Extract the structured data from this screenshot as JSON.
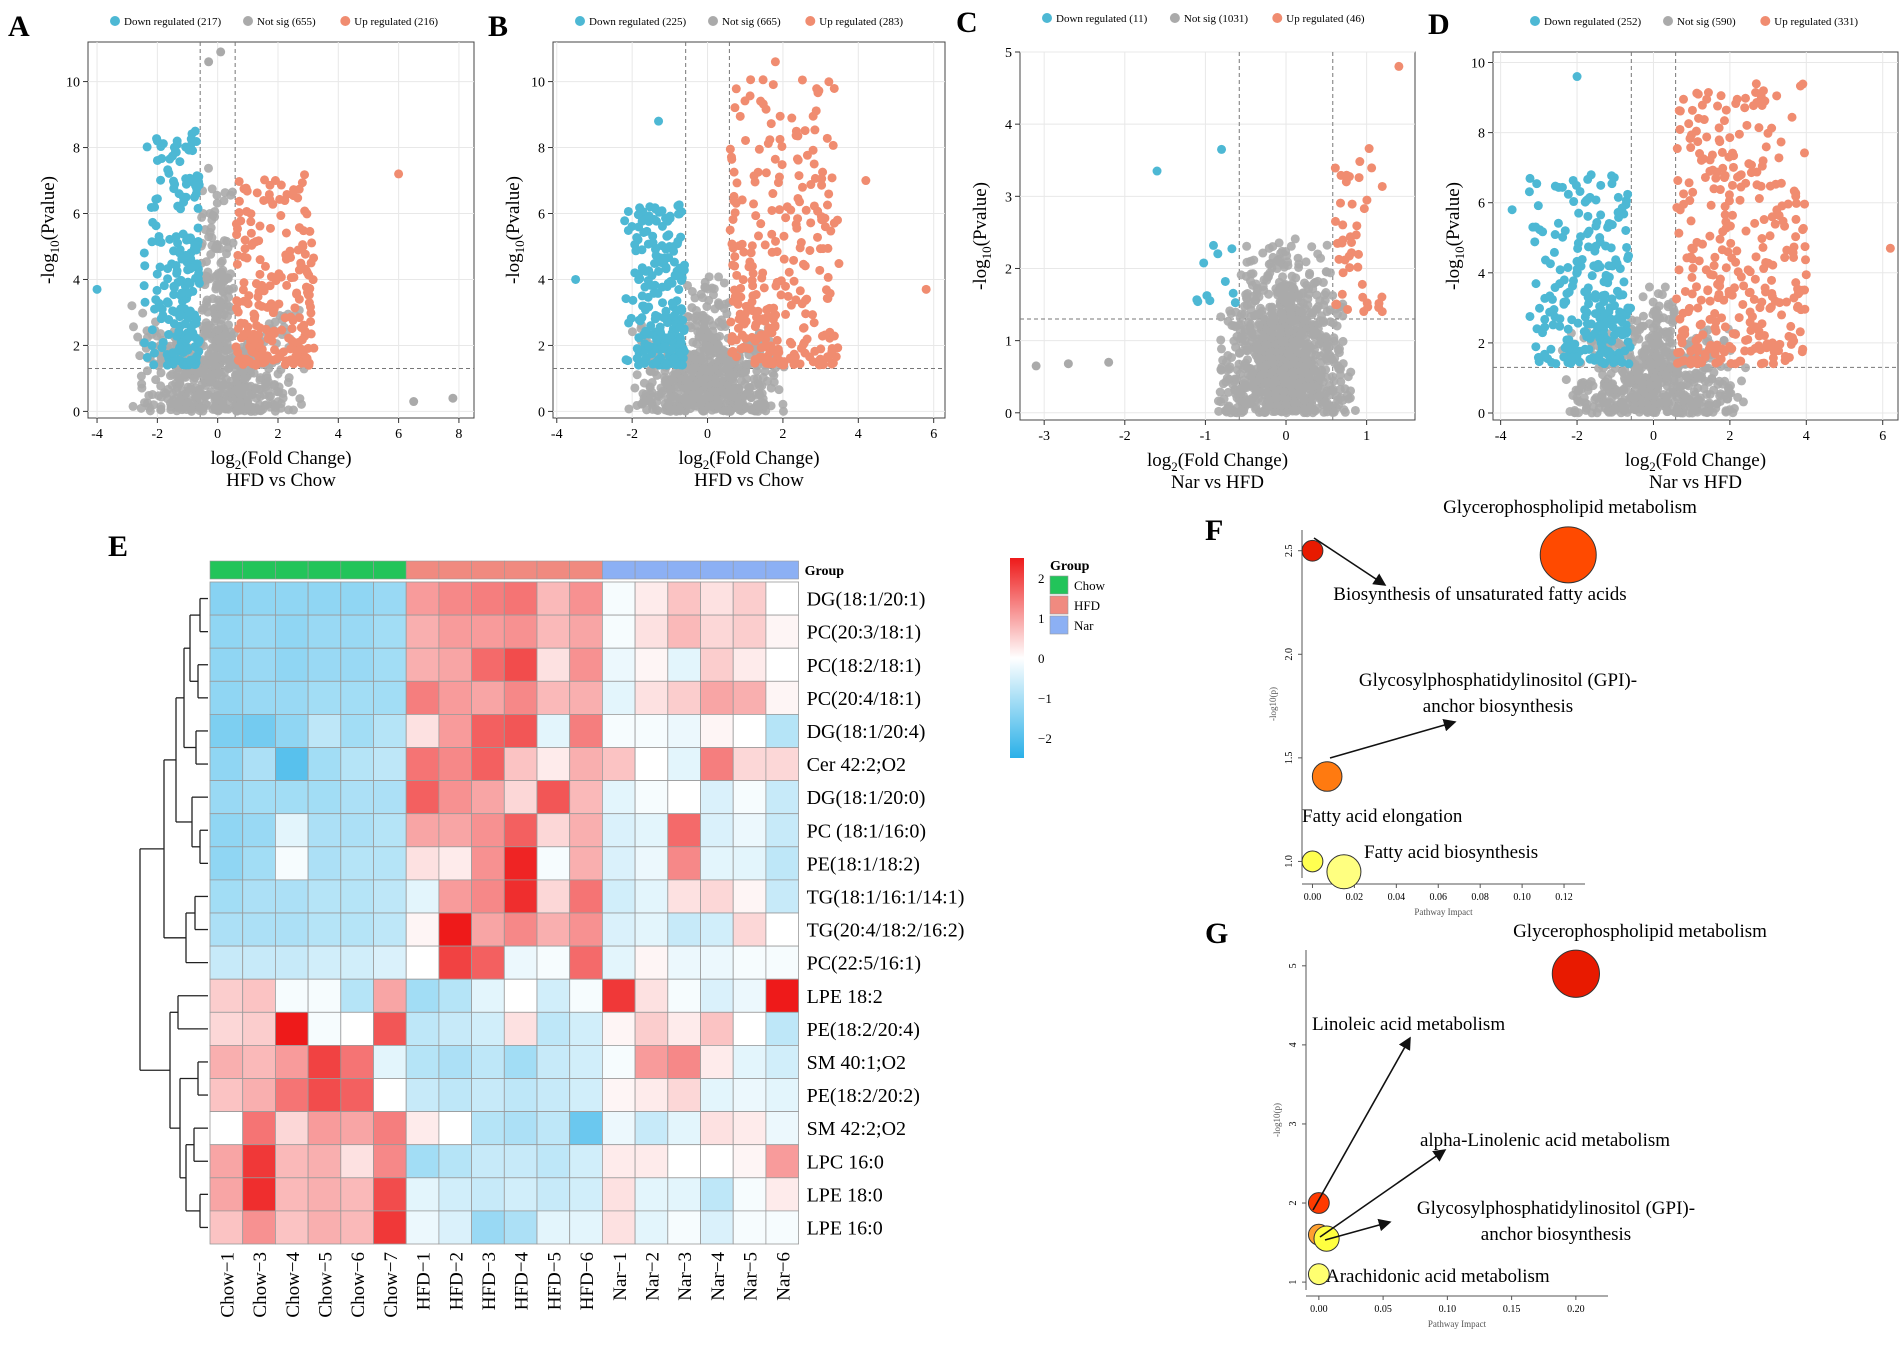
{
  "figure": {
    "panels": [
      "A",
      "B",
      "C",
      "D",
      "E",
      "F",
      "G"
    ]
  },
  "colors": {
    "down": "#4db8d4",
    "notsig": "#aaaaaa",
    "up": "#f08c70",
    "grid": "#e8e8e8",
    "heat_low": "#2ab0e8",
    "heat_mid": "#ffffff",
    "heat_high": "#ee1a1a",
    "chow": "#22c45a",
    "hfd": "#f08a80",
    "nar": "#8cb0f4"
  },
  "chart_data": [
    {
      "panel": "A",
      "type": "scatter",
      "subtype": "volcano",
      "xlabel_main": "log",
      "xlabel_sub": "2",
      "xlabel_rest": "(Fold Change)",
      "ylabel_main": "-log",
      "ylabel_sub": "10",
      "ylabel_rest": "(Pvalue)",
      "subtitle": "HFD vs Chow",
      "xlim": [
        -4.3,
        8.5
      ],
      "ylim": [
        -0.2,
        11.2
      ],
      "xticks": [
        -4,
        -2,
        0,
        2,
        4,
        6,
        8
      ],
      "yticks": [
        0,
        2,
        4,
        6,
        8,
        10
      ],
      "fc_threshold": 0.58,
      "p_line": 1.3,
      "legend": [
        {
          "key": "down",
          "label": "Down regulated (217)",
          "count": 217
        },
        {
          "key": "notsig",
          "label": "Not sig (655)",
          "count": 655
        },
        {
          "key": "up",
          "label": "Up regulated (216)",
          "count": 216
        }
      ],
      "cloud": {
        "down": [
          -2.5,
          -0.6,
          1.4,
          8.5
        ],
        "up": [
          0.6,
          3.2,
          1.4,
          7.2
        ],
        "ns_spread": 3.0,
        "ns_max": 8.0
      },
      "outliers": [
        [
          -4.0,
          3.7,
          "down"
        ],
        [
          6.0,
          7.2,
          "up"
        ],
        [
          -0.3,
          10.6,
          "notsig"
        ],
        [
          0.1,
          10.9,
          "notsig"
        ],
        [
          7.8,
          0.4,
          "notsig"
        ],
        [
          6.5,
          0.3,
          "notsig"
        ]
      ]
    },
    {
      "panel": "B",
      "type": "scatter",
      "subtype": "volcano",
      "xlabel_main": "log",
      "xlabel_sub": "2",
      "xlabel_rest": "(Fold Change)",
      "ylabel_main": "-log",
      "ylabel_sub": "10",
      "ylabel_rest": "(Pvalue)",
      "subtitle": "HFD vs Chow",
      "xlim": [
        -4.1,
        6.3
      ],
      "ylim": [
        -0.2,
        11.2
      ],
      "xticks": [
        -4,
        -2,
        0,
        2,
        4,
        6
      ],
      "yticks": [
        0,
        2,
        4,
        6,
        8,
        10
      ],
      "fc_threshold": 0.58,
      "p_line": 1.3,
      "legend": [
        {
          "key": "down",
          "label": "Down regulated (225)",
          "count": 225
        },
        {
          "key": "notsig",
          "label": "Not sig (665)",
          "count": 665
        },
        {
          "key": "up",
          "label": "Up regulated (283)",
          "count": 283
        }
      ],
      "cloud": {
        "down": [
          -2.3,
          -0.6,
          1.4,
          6.3
        ],
        "up": [
          0.6,
          3.5,
          1.4,
          10.2
        ],
        "ns_spread": 2.2,
        "ns_max": 4.5
      },
      "outliers": [
        [
          -3.5,
          4.0,
          "down"
        ],
        [
          -1.3,
          8.8,
          "down"
        ],
        [
          5.8,
          3.7,
          "up"
        ],
        [
          4.2,
          7.0,
          "up"
        ],
        [
          1.8,
          10.6,
          "up"
        ]
      ]
    },
    {
      "panel": "C",
      "type": "scatter",
      "subtype": "volcano",
      "xlabel_main": "log",
      "xlabel_sub": "2",
      "xlabel_rest": "(Fold Change)",
      "ylabel_main": "-log",
      "ylabel_sub": "10",
      "ylabel_rest": "(Pvalue)",
      "subtitle": "Nar vs HFD",
      "xlim": [
        -3.3,
        1.6
      ],
      "ylim": [
        -0.1,
        5.0
      ],
      "xticks": [
        -3,
        -2,
        -1,
        0,
        1
      ],
      "yticks": [
        0,
        1,
        2,
        3,
        4,
        5
      ],
      "fc_threshold": 0.58,
      "p_line": 1.3,
      "legend": [
        {
          "key": "down",
          "label": "Down regulated (11)",
          "count": 11
        },
        {
          "key": "notsig",
          "label": "Not sig (1031)",
          "count": 1031
        },
        {
          "key": "up",
          "label": "Up regulated (46)",
          "count": 46
        }
      ],
      "cloud": {
        "down": [
          -1.6,
          -0.6,
          1.4,
          2.4
        ],
        "up": [
          0.6,
          1.2,
          1.4,
          3.7
        ],
        "ns_spread": 0.9,
        "ns_max": 2.6
      },
      "outliers": [
        [
          -1.6,
          3.35,
          "down"
        ],
        [
          -0.8,
          3.65,
          "down"
        ],
        [
          1.4,
          4.8,
          "up"
        ],
        [
          -3.1,
          0.65,
          "notsig"
        ],
        [
          -2.7,
          0.68,
          "notsig"
        ],
        [
          -2.2,
          0.7,
          "notsig"
        ]
      ]
    },
    {
      "panel": "D",
      "type": "scatter",
      "subtype": "volcano",
      "xlabel_main": "log",
      "xlabel_sub": "2",
      "xlabel_rest": "(Fold Change)",
      "ylabel_main": "-log",
      "ylabel_sub": "10",
      "ylabel_rest": "(Pvalue)",
      "subtitle": "Nar vs HFD",
      "xlim": [
        -4.2,
        6.4
      ],
      "ylim": [
        -0.2,
        10.3
      ],
      "xticks": [
        -4,
        -2,
        0,
        2,
        4,
        6
      ],
      "yticks": [
        0,
        2,
        4,
        6,
        8,
        10
      ],
      "fc_threshold": 0.58,
      "p_line": 1.3,
      "legend": [
        {
          "key": "down",
          "label": "Down regulated (252)",
          "count": 252
        },
        {
          "key": "notsig",
          "label": "Not sig (590)",
          "count": 590
        },
        {
          "key": "up",
          "label": "Up regulated (331)",
          "count": 331
        }
      ],
      "cloud": {
        "down": [
          -3.5,
          -0.6,
          1.4,
          6.8
        ],
        "up": [
          0.6,
          4.0,
          1.4,
          9.4
        ],
        "ns_spread": 2.5,
        "ns_max": 4.0
      },
      "outliers": [
        [
          -2.0,
          9.6,
          "down"
        ],
        [
          6.2,
          4.7,
          "up"
        ],
        [
          -3.7,
          5.8,
          "down"
        ]
      ]
    },
    {
      "panel": "E",
      "type": "heatmap",
      "annotation_title": "Group",
      "legend_title": "Group",
      "groups": [
        {
          "key": "chow",
          "label": "Chow"
        },
        {
          "key": "hfd",
          "label": "HFD"
        },
        {
          "key": "nar",
          "label": "Nar"
        }
      ],
      "scale_ticks": [
        2,
        1,
        0,
        -1,
        -2
      ],
      "scale_labels": [
        "2",
        "1",
        "0",
        "−1",
        "−2"
      ],
      "columns": [
        "Chow−1",
        "Chow−3",
        "Chow−4",
        "Chow−5",
        "Chow−6",
        "Chow−7",
        "HFD−1",
        "HFD−2",
        "HFD−3",
        "HFD−4",
        "HFD−5",
        "HFD−6",
        "Nar−1",
        "Nar−2",
        "Nar−3",
        "Nar−4",
        "Nar−5",
        "Nar−6"
      ],
      "column_groups": [
        "chow",
        "chow",
        "chow",
        "chow",
        "chow",
        "chow",
        "hfd",
        "hfd",
        "hfd",
        "hfd",
        "hfd",
        "hfd",
        "nar",
        "nar",
        "nar",
        "nar",
        "nar",
        "nar"
      ],
      "rows": [
        "DG(18:1/20:1)",
        "PC(20:3/18:1)",
        "PC(18:2/18:1)",
        "PC(20:4/18:1)",
        "DG(18:1/20:4)",
        "Cer 42:2;O2",
        "DG(18:1/20:0)",
        "PC (18:1/16:0)",
        "PE(18:1/18:2)",
        "TG(18:1/16:1/14:1)",
        "TG(20:4/18:2/16:2)",
        "PC(22:5/16:1)",
        "LPE 18:2",
        "PE(18:2/20:4)",
        "SM 40:1;O2",
        "PE(18:2/20:2)",
        "SM 42:2;O2",
        "LPC 16:0",
        "LPE 18:0",
        "LPE 16:0"
      ],
      "values": [
        [
          -1.3,
          -1.2,
          -1.2,
          -1.2,
          -1.2,
          -1.1,
          1.0,
          1.2,
          1.3,
          1.4,
          0.7,
          1.1,
          -0.1,
          0.2,
          0.6,
          0.3,
          0.5,
          0.0
        ],
        [
          -1.2,
          -1.1,
          -1.2,
          -1.1,
          -1.1,
          -1.0,
          0.8,
          1.0,
          1.0,
          1.1,
          0.7,
          0.9,
          -0.1,
          0.3,
          0.7,
          0.4,
          0.5,
          0.1
        ],
        [
          -1.2,
          -1.1,
          -1.2,
          -1.1,
          -1.1,
          -1.0,
          0.8,
          0.9,
          1.5,
          1.8,
          0.3,
          1.1,
          -0.2,
          0.1,
          -0.3,
          0.5,
          0.2,
          0.0
        ],
        [
          -1.2,
          -1.1,
          -1.1,
          -1.0,
          -1.0,
          -1.0,
          1.3,
          1.0,
          0.9,
          1.2,
          0.7,
          0.8,
          -0.3,
          0.3,
          0.5,
          0.9,
          0.8,
          0.1
        ],
        [
          -1.4,
          -1.5,
          -1.2,
          -0.7,
          -1.0,
          -0.8,
          0.3,
          1.0,
          1.6,
          1.7,
          -0.3,
          1.3,
          -0.1,
          -0.1,
          -0.2,
          0.1,
          0.0,
          -0.8
        ],
        [
          -1.2,
          -0.9,
          -1.8,
          -1.0,
          -0.8,
          -0.7,
          1.4,
          1.2,
          1.6,
          0.6,
          0.2,
          0.8,
          0.6,
          0.0,
          -0.3,
          1.3,
          0.4,
          0.4
        ],
        [
          -1.1,
          -1.0,
          -1.0,
          -1.0,
          -0.9,
          -0.9,
          1.6,
          1.1,
          0.9,
          0.4,
          1.7,
          0.7,
          -0.3,
          -0.1,
          0.0,
          -0.4,
          -0.1,
          -0.6
        ],
        [
          -1.2,
          -1.1,
          -0.3,
          -0.9,
          -0.9,
          -0.8,
          0.9,
          0.9,
          1.1,
          1.6,
          0.4,
          0.8,
          -0.4,
          -0.3,
          1.5,
          -0.4,
          -0.2,
          -0.6
        ],
        [
          -1.2,
          -1.0,
          -0.1,
          -0.9,
          -0.8,
          -0.8,
          0.3,
          0.2,
          1.1,
          2.2,
          -0.1,
          0.8,
          -0.4,
          -0.2,
          1.2,
          -0.3,
          -0.3,
          -0.7
        ],
        [
          -1.0,
          -0.9,
          -0.9,
          -0.8,
          -0.8,
          -0.7,
          -0.3,
          1.0,
          1.2,
          2.1,
          0.4,
          1.4,
          -0.5,
          -0.3,
          0.3,
          0.4,
          0.1,
          -0.6
        ],
        [
          -0.9,
          -0.9,
          -0.9,
          -0.8,
          -0.8,
          -0.7,
          0.1,
          2.3,
          0.9,
          1.2,
          0.8,
          1.1,
          -0.4,
          -0.3,
          -0.6,
          -0.5,
          0.4,
          0.0
        ],
        [
          -0.6,
          -0.6,
          -0.6,
          -0.5,
          -0.5,
          -0.4,
          0.0,
          1.9,
          1.6,
          -0.2,
          -0.1,
          1.5,
          -0.3,
          0.1,
          -0.2,
          -0.2,
          -0.1,
          -0.1
        ],
        [
          0.5,
          0.6,
          -0.1,
          -0.1,
          -0.8,
          0.9,
          -1.0,
          -0.8,
          -0.3,
          0.0,
          -0.5,
          -0.1,
          2.0,
          0.3,
          -0.1,
          -0.4,
          -0.2,
          2.3
        ],
        [
          0.4,
          0.5,
          2.3,
          -0.1,
          0.0,
          1.7,
          -0.7,
          -0.6,
          -0.5,
          0.3,
          -0.7,
          -0.5,
          0.1,
          0.5,
          0.2,
          0.6,
          0.0,
          -0.7
        ],
        [
          0.8,
          0.7,
          1.0,
          1.9,
          1.4,
          -0.3,
          -0.8,
          -0.9,
          -0.7,
          -1.0,
          -0.6,
          -0.5,
          -0.1,
          1.0,
          1.2,
          0.2,
          -0.3,
          -0.5
        ],
        [
          0.6,
          0.8,
          1.4,
          1.8,
          1.6,
          0.0,
          -0.6,
          -0.7,
          -0.6,
          -0.7,
          -0.6,
          -0.5,
          0.1,
          0.2,
          0.4,
          -0.3,
          -0.2,
          -0.3
        ],
        [
          0.0,
          1.4,
          0.4,
          1.0,
          0.9,
          1.3,
          0.2,
          0.0,
          -0.8,
          -0.9,
          -0.7,
          -1.6,
          -0.2,
          -0.6,
          -0.3,
          0.3,
          0.2,
          -0.2
        ],
        [
          0.9,
          2.0,
          0.7,
          0.8,
          0.3,
          1.2,
          -1.0,
          -0.8,
          -0.6,
          -0.6,
          -0.7,
          -0.5,
          0.2,
          0.2,
          0.0,
          0.0,
          0.1,
          1.0
        ],
        [
          0.9,
          2.1,
          0.7,
          0.8,
          0.7,
          1.8,
          -0.3,
          -0.5,
          -0.6,
          -0.5,
          -0.6,
          -0.5,
          0.3,
          -0.3,
          -0.3,
          -0.7,
          -0.1,
          0.2
        ],
        [
          0.6,
          1.1,
          0.6,
          0.8,
          0.7,
          2.0,
          -0.2,
          -0.4,
          -1.1,
          -0.9,
          -0.3,
          -0.3,
          0.3,
          -0.3,
          -0.1,
          -0.4,
          -0.1,
          -0.1
        ]
      ],
      "row_order_leaves": [
        0,
        1,
        2,
        3,
        4,
        5,
        6,
        7,
        8,
        9,
        10,
        11,
        12,
        13,
        14,
        15,
        16,
        17,
        18,
        19
      ]
    },
    {
      "panel": "F",
      "type": "scatter",
      "subtype": "pathway-bubble",
      "xlabel": "Pathway Impact",
      "ylabel": "-log10(p)",
      "xlim": [
        -0.005,
        0.13
      ],
      "ylim": [
        0.92,
        2.6
      ],
      "xticks": [
        0.0,
        0.02,
        0.04,
        0.06,
        0.08,
        0.1,
        0.12
      ],
      "xtick_labels": [
        "0.00",
        "0.02",
        "0.04",
        "0.06",
        "0.08",
        "0.10",
        "0.12"
      ],
      "yticks": [
        1.0,
        1.5,
        2.0,
        2.5
      ],
      "ytick_labels": [
        "1.0",
        "1.5",
        "2.0",
        "2.5"
      ],
      "points": [
        {
          "label": "Glycerophospholipid metabolism",
          "x": 0.122,
          "y": 2.48,
          "size": 5,
          "color": "#ff4a00"
        },
        {
          "label": "Biosynthesis of unsaturated fatty acids",
          "x": 0.0,
          "y": 2.5,
          "size": 1,
          "color": "#e81a00"
        },
        {
          "label": "Glycosylphosphatidylinositol (GPI)-anchor biosynthesis",
          "x": 0.007,
          "y": 1.41,
          "size": 2,
          "color": "#ff7a10"
        },
        {
          "label": "Fatty acid elongation",
          "x": 0.0,
          "y": 1.0,
          "size": 1,
          "color": "#ffff50"
        },
        {
          "label": "Fatty acid biosynthesis",
          "x": 0.015,
          "y": 0.95,
          "size": 2.5,
          "color": "#ffff80"
        }
      ]
    },
    {
      "panel": "G",
      "type": "scatter",
      "subtype": "pathway-bubble",
      "xlabel": "Pathway Impact",
      "ylabel": "-log10(p)",
      "xlim": [
        -0.01,
        0.225
      ],
      "ylim": [
        0.9,
        5.2
      ],
      "xticks": [
        0.0,
        0.05,
        0.1,
        0.15,
        0.2
      ],
      "xtick_labels": [
        "0.00",
        "0.05",
        "0.10",
        "0.15",
        "0.20"
      ],
      "yticks": [
        1,
        2,
        3,
        4,
        5
      ],
      "ytick_labels": [
        "1",
        "2",
        "3",
        "4",
        "5"
      ],
      "points": [
        {
          "label": "Glycerophospholipid metabolism",
          "x": 0.2,
          "y": 4.9,
          "size": 4,
          "color": "#e81a00"
        },
        {
          "label": "Linoleic acid metabolism",
          "x": 0.0,
          "y": 2.0,
          "size": 1,
          "color": "#ff3a00"
        },
        {
          "label": "alpha-Linolenic acid metabolism",
          "x": 0.0,
          "y": 1.6,
          "size": 1,
          "color": "#ffa030"
        },
        {
          "label": "Glycosylphosphatidylinositol (GPI)-anchor biosynthesis",
          "x": 0.006,
          "y": 1.55,
          "size": 1.5,
          "color": "#ffff40"
        },
        {
          "label": "Arachidonic acid metabolism",
          "x": 0.0,
          "y": 1.1,
          "size": 1,
          "color": "#ffff70"
        }
      ]
    }
  ],
  "labels": {
    "F": {
      "t1": "Glycerophospholipid metabolism",
      "t2": "Biosynthesis of unsaturated fatty acids",
      "t3a": "Glycosylphosphatidylinositol (GPI)-",
      "t3b": "anchor biosynthesis",
      "t4": "Fatty acid elongation",
      "t5": "Fatty acid biosynthesis"
    },
    "G": {
      "t1": "Glycerophospholipid metabolism",
      "t2": "Linoleic acid metabolism",
      "t3": "alpha-Linolenic acid metabolism",
      "t4a": "Glycosylphosphatidylinositol (GPI)-",
      "t4b": "anchor biosynthesis",
      "t5": "Arachidonic acid metabolism"
    }
  }
}
